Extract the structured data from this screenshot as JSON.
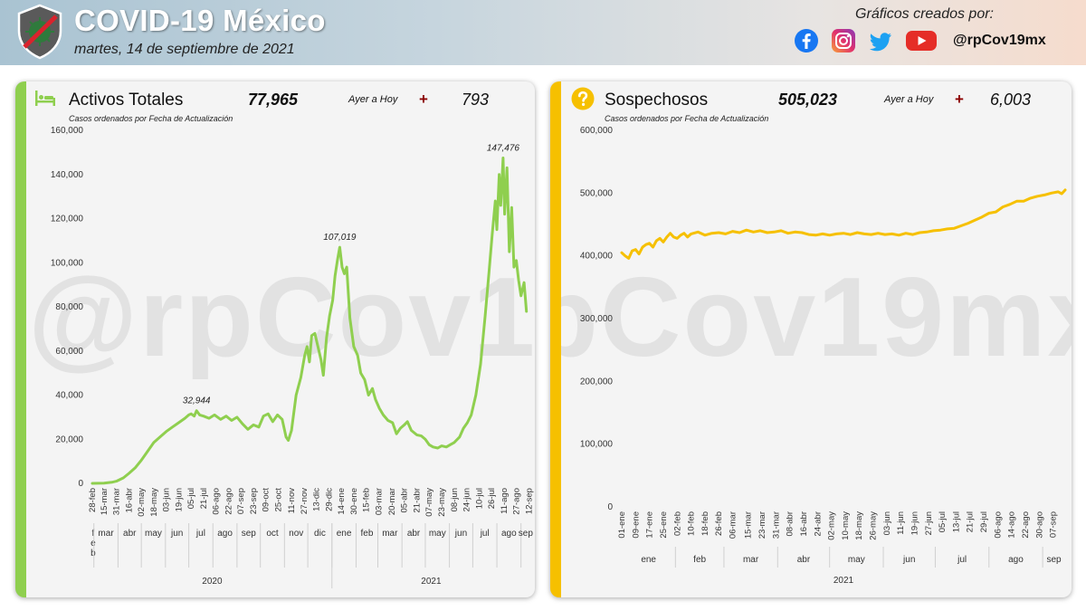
{
  "header": {
    "title": "COVID-19 México",
    "date": "martes, 14 de septiembre de 2021",
    "credits_label": "Gráficos creados por:",
    "handle": "@rpCov19mx",
    "social_icons": [
      "facebook-icon",
      "instagram-icon",
      "twitter-icon",
      "youtube-icon"
    ]
  },
  "watermark": "@rpCov19mx",
  "colors": {
    "active_line": "#8fcf4f",
    "suspect_line": "#f6c000",
    "plus_sign": "#8b0000"
  },
  "panels": {
    "active": {
      "title": "Activos Totales",
      "total": "77,965",
      "ayer_label": "Ayer a Hoy",
      "plus": "+",
      "delta": "793",
      "subtitle": "Casos ordenados por Fecha de Actualización"
    },
    "suspect": {
      "title": "Sospechosos",
      "total": "505,023",
      "ayer_label": "Ayer a Hoy",
      "plus": "+",
      "delta": "6,003",
      "subtitle": "Casos ordenados por Fecha de Actualización"
    }
  },
  "chart_data": [
    {
      "type": "line",
      "color": "#8fcf4f",
      "ylim": [
        0,
        160000
      ],
      "yticks": [
        "0",
        "20,000",
        "40,000",
        "60,000",
        "80,000",
        "100,000",
        "120,000",
        "140,000",
        "160,000"
      ],
      "x_ticks": [
        "28-feb",
        "15-mar",
        "31-mar",
        "16-abr",
        "02-may",
        "18-may",
        "03-jun",
        "19-jun",
        "05-jul",
        "21-jul",
        "06-ago",
        "22-ago",
        "07-sep",
        "23-sep",
        "09-oct",
        "25-oct",
        "11-nov",
        "27-nov",
        "13-dic",
        "29-dic",
        "14-ene",
        "30-ene",
        "15-feb",
        "03-mar",
        "20-mar",
        "05-abr",
        "21-abr",
        "07-may",
        "23-may",
        "08-jun",
        "24-jun",
        "10-jul",
        "26-jul",
        "11-ago",
        "27-ago",
        "12-sep"
      ],
      "x_ticks_day": [
        0,
        15,
        31,
        47,
        63,
        79,
        95,
        111,
        127,
        143,
        159,
        175,
        191,
        207,
        223,
        239,
        256,
        272,
        288,
        304,
        320,
        336,
        352,
        368,
        385,
        401,
        417,
        433,
        449,
        465,
        481,
        497,
        513,
        529,
        545,
        561
      ],
      "months": [
        {
          "label": "f e b",
          "start": 0,
          "end": 2
        },
        {
          "label": "mar",
          "start": 2,
          "end": 33
        },
        {
          "label": "abr",
          "start": 33,
          "end": 63
        },
        {
          "label": "may",
          "start": 63,
          "end": 94
        },
        {
          "label": "jun",
          "start": 94,
          "end": 124
        },
        {
          "label": "jul",
          "start": 124,
          "end": 155
        },
        {
          "label": "ago",
          "start": 155,
          "end": 186
        },
        {
          "label": "sep",
          "start": 186,
          "end": 216
        },
        {
          "label": "oct",
          "start": 216,
          "end": 247
        },
        {
          "label": "nov",
          "start": 247,
          "end": 277
        },
        {
          "label": "dic",
          "start": 277,
          "end": 308
        },
        {
          "label": "ene",
          "start": 308,
          "end": 339
        },
        {
          "label": "feb",
          "start": 339,
          "end": 367
        },
        {
          "label": "mar",
          "start": 367,
          "end": 398
        },
        {
          "label": "abr",
          "start": 398,
          "end": 428
        },
        {
          "label": "may",
          "start": 428,
          "end": 459
        },
        {
          "label": "jun",
          "start": 459,
          "end": 489
        },
        {
          "label": "jul",
          "start": 489,
          "end": 520
        },
        {
          "label": "ago",
          "start": 520,
          "end": 551
        },
        {
          "label": "sep",
          "start": 551,
          "end": 563
        }
      ],
      "years": [
        {
          "label": "2020",
          "start": 0,
          "end": 308
        },
        {
          "label": "2021",
          "start": 308,
          "end": 563
        }
      ],
      "x_range": [
        0,
        563
      ],
      "points": [
        [
          0,
          0
        ],
        [
          15,
          100
        ],
        [
          25,
          500
        ],
        [
          31,
          1000
        ],
        [
          40,
          2500
        ],
        [
          47,
          4500
        ],
        [
          55,
          7000
        ],
        [
          63,
          10500
        ],
        [
          70,
          14000
        ],
        [
          79,
          18500
        ],
        [
          87,
          21000
        ],
        [
          95,
          23500
        ],
        [
          103,
          25500
        ],
        [
          111,
          27500
        ],
        [
          119,
          29500
        ],
        [
          124,
          31000
        ],
        [
          127,
          31500
        ],
        [
          131,
          30500
        ],
        [
          134,
          32944
        ],
        [
          138,
          31000
        ],
        [
          143,
          30500
        ],
        [
          150,
          29500
        ],
        [
          157,
          31000
        ],
        [
          165,
          29000
        ],
        [
          172,
          30500
        ],
        [
          179,
          28500
        ],
        [
          186,
          30000
        ],
        [
          193,
          27000
        ],
        [
          200,
          24500
        ],
        [
          207,
          26500
        ],
        [
          214,
          25500
        ],
        [
          220,
          30500
        ],
        [
          226,
          31500
        ],
        [
          232,
          28000
        ],
        [
          238,
          31000
        ],
        [
          244,
          29000
        ],
        [
          249,
          21000
        ],
        [
          252,
          19500
        ],
        [
          256,
          24000
        ],
        [
          262,
          40000
        ],
        [
          268,
          48000
        ],
        [
          273,
          58000
        ],
        [
          276,
          62000
        ],
        [
          279,
          55000
        ],
        [
          282,
          67000
        ],
        [
          286,
          68000
        ],
        [
          290,
          62000
        ],
        [
          294,
          56000
        ],
        [
          297,
          49000
        ],
        [
          301,
          66000
        ],
        [
          305,
          76000
        ],
        [
          309,
          83000
        ],
        [
          312,
          94000
        ],
        [
          315,
          101000
        ],
        [
          318,
          107019
        ],
        [
          321,
          98000
        ],
        [
          324,
          95000
        ],
        [
          327,
          98000
        ],
        [
          331,
          75000
        ],
        [
          336,
          62000
        ],
        [
          341,
          58000
        ],
        [
          345,
          50000
        ],
        [
          350,
          47000
        ],
        [
          355,
          40000
        ],
        [
          360,
          43000
        ],
        [
          364,
          38000
        ],
        [
          369,
          34000
        ],
        [
          374,
          31000
        ],
        [
          380,
          28500
        ],
        [
          386,
          27500
        ],
        [
          391,
          22500
        ],
        [
          396,
          25000
        ],
        [
          401,
          26500
        ],
        [
          405,
          28000
        ],
        [
          410,
          24000
        ],
        [
          417,
          22000
        ],
        [
          423,
          21500
        ],
        [
          428,
          20000
        ],
        [
          433,
          17500
        ],
        [
          438,
          16500
        ],
        [
          444,
          16000
        ],
        [
          449,
          17000
        ],
        [
          455,
          16500
        ],
        [
          460,
          17500
        ],
        [
          465,
          18500
        ],
        [
          472,
          21000
        ],
        [
          477,
          25000
        ],
        [
          482,
          27500
        ],
        [
          487,
          31000
        ],
        [
          493,
          40000
        ],
        [
          499,
          54000
        ],
        [
          505,
          76000
        ],
        [
          510,
          96000
        ],
        [
          514,
          113000
        ],
        [
          518,
          128000
        ],
        [
          520,
          115000
        ],
        [
          523,
          140000
        ],
        [
          525,
          126000
        ],
        [
          528,
          147476
        ],
        [
          530,
          122000
        ],
        [
          533,
          143000
        ],
        [
          536,
          105000
        ],
        [
          539,
          125000
        ],
        [
          542,
          98000
        ],
        [
          545,
          101000
        ],
        [
          548,
          92000
        ],
        [
          551,
          85000
        ],
        [
          555,
          91000
        ],
        [
          558,
          77965
        ]
      ],
      "labels": [
        {
          "text": "32,944",
          "x": 134,
          "y": 32944
        },
        {
          "text": "107,019",
          "x": 318,
          "y": 107019
        },
        {
          "text": "147,476",
          "x": 528,
          "y": 147476
        }
      ]
    },
    {
      "type": "line",
      "color": "#f6c000",
      "ylim": [
        0,
        600000
      ],
      "yticks": [
        "0",
        "100,000",
        "200,000",
        "300,000",
        "400,000",
        "500,000",
        "600,000"
      ],
      "x_ticks": [
        "01-ene",
        "09-ene",
        "17-ene",
        "25-ene",
        "02-feb",
        "10-feb",
        "18-feb",
        "26-feb",
        "06-mar",
        "15-mar",
        "23-mar",
        "31-mar",
        "08-abr",
        "16-abr",
        "24-abr",
        "02-may",
        "10-may",
        "18-may",
        "26-may",
        "03-jun",
        "11-jun",
        "19-jun",
        "27-jun",
        "05-jul",
        "13-jul",
        "21-jul",
        "29-jul",
        "06-ago",
        "14-ago",
        "22-ago",
        "30-ago",
        "07-sep"
      ],
      "x_ticks_day": [
        0,
        8,
        16,
        24,
        32,
        40,
        48,
        56,
        64,
        73,
        81,
        89,
        97,
        105,
        113,
        121,
        129,
        137,
        145,
        153,
        161,
        169,
        177,
        185,
        193,
        201,
        209,
        217,
        225,
        233,
        241,
        249
      ],
      "months": [
        {
          "label": "ene",
          "start": 0,
          "end": 31
        },
        {
          "label": "feb",
          "start": 31,
          "end": 59
        },
        {
          "label": "mar",
          "start": 59,
          "end": 90
        },
        {
          "label": "abr",
          "start": 90,
          "end": 120
        },
        {
          "label": "may",
          "start": 120,
          "end": 151
        },
        {
          "label": "jun",
          "start": 151,
          "end": 181
        },
        {
          "label": "jul",
          "start": 181,
          "end": 212
        },
        {
          "label": "ago",
          "start": 212,
          "end": 243
        },
        {
          "label": "sep",
          "start": 243,
          "end": 256
        }
      ],
      "years": [
        {
          "label": "2021",
          "start": 0,
          "end": 256
        }
      ],
      "x_range": [
        0,
        256
      ],
      "points": [
        [
          0,
          405000
        ],
        [
          2,
          400000
        ],
        [
          4,
          396000
        ],
        [
          6,
          408000
        ],
        [
          8,
          410000
        ],
        [
          10,
          403000
        ],
        [
          12,
          414000
        ],
        [
          14,
          418000
        ],
        [
          16,
          420000
        ],
        [
          18,
          414000
        ],
        [
          20,
          424000
        ],
        [
          22,
          428000
        ],
        [
          24,
          422000
        ],
        [
          26,
          430000
        ],
        [
          28,
          436000
        ],
        [
          30,
          430000
        ],
        [
          32,
          428000
        ],
        [
          34,
          433000
        ],
        [
          36,
          436000
        ],
        [
          38,
          430000
        ],
        [
          40,
          435000
        ],
        [
          44,
          438000
        ],
        [
          48,
          433000
        ],
        [
          52,
          436000
        ],
        [
          56,
          437000
        ],
        [
          60,
          435000
        ],
        [
          64,
          439000
        ],
        [
          68,
          437000
        ],
        [
          72,
          441000
        ],
        [
          76,
          438000
        ],
        [
          80,
          440000
        ],
        [
          84,
          437000
        ],
        [
          88,
          438000
        ],
        [
          92,
          440000
        ],
        [
          96,
          436000
        ],
        [
          100,
          438000
        ],
        [
          104,
          437000
        ],
        [
          108,
          434000
        ],
        [
          112,
          433000
        ],
        [
          116,
          435000
        ],
        [
          120,
          433000
        ],
        [
          124,
          435000
        ],
        [
          128,
          436000
        ],
        [
          132,
          434000
        ],
        [
          136,
          437000
        ],
        [
          140,
          435000
        ],
        [
          144,
          434000
        ],
        [
          148,
          436000
        ],
        [
          152,
          434000
        ],
        [
          156,
          435000
        ],
        [
          160,
          433000
        ],
        [
          164,
          436000
        ],
        [
          168,
          434000
        ],
        [
          172,
          437000
        ],
        [
          176,
          438000
        ],
        [
          180,
          440000
        ],
        [
          184,
          441000
        ],
        [
          188,
          443000
        ],
        [
          192,
          444000
        ],
        [
          196,
          448000
        ],
        [
          200,
          452000
        ],
        [
          204,
          457000
        ],
        [
          208,
          462000
        ],
        [
          212,
          468000
        ],
        [
          216,
          470000
        ],
        [
          220,
          478000
        ],
        [
          224,
          482000
        ],
        [
          228,
          487000
        ],
        [
          232,
          487000
        ],
        [
          236,
          492000
        ],
        [
          240,
          495000
        ],
        [
          244,
          497000
        ],
        [
          248,
          500000
        ],
        [
          252,
          502000
        ],
        [
          254,
          499000
        ],
        [
          256,
          505023
        ]
      ]
    }
  ]
}
